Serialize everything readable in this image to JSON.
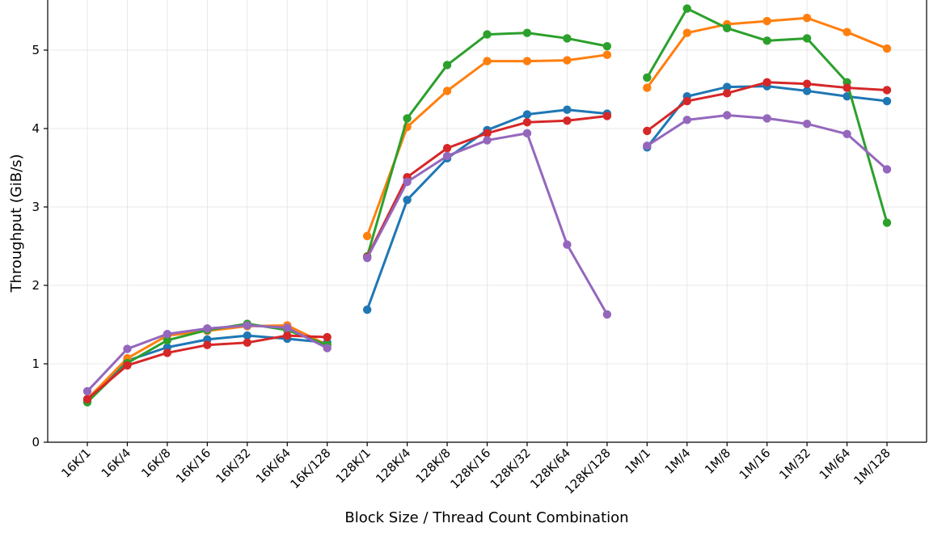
{
  "chart_data": {
    "type": "line",
    "title": "",
    "xlabel": "Block Size / Thread Count Combination",
    "ylabel": "Throughput (GiB/s)",
    "ylim": [
      0,
      5.6
    ],
    "yticks": [
      0,
      1,
      2,
      3,
      4,
      5
    ],
    "grid": true,
    "legend": "none",
    "categories": [
      "16K/1",
      "16K/4",
      "16K/8",
      "16K/16",
      "16K/32",
      "16K/64",
      "16K/128",
      "128K/1",
      "128K/4",
      "128K/8",
      "128K/16",
      "128K/32",
      "128K/64",
      "128K/128",
      "1M/1",
      "1M/4",
      "1M/8",
      "1M/16",
      "1M/32",
      "1M/64",
      "1M/128"
    ],
    "groups": [
      [
        0,
        6
      ],
      [
        7,
        13
      ],
      [
        14,
        20
      ]
    ],
    "series": [
      {
        "color": "#1f77b4",
        "values": [
          0.52,
          1.04,
          1.21,
          1.31,
          1.36,
          1.32,
          1.27,
          1.69,
          3.09,
          3.62,
          3.98,
          4.18,
          4.24,
          4.19,
          3.76,
          4.41,
          4.53,
          4.54,
          4.48,
          4.41,
          4.35
        ]
      },
      {
        "color": "#ff7f0e",
        "values": [
          0.55,
          1.07,
          1.36,
          1.42,
          1.48,
          1.49,
          1.24,
          2.63,
          4.02,
          4.48,
          4.86,
          4.86,
          4.87,
          4.94,
          4.52,
          5.22,
          5.33,
          5.37,
          5.41,
          5.23,
          5.02
        ]
      },
      {
        "color": "#2ca02c",
        "values": [
          0.51,
          1.01,
          1.3,
          1.43,
          1.51,
          1.43,
          1.24,
          2.37,
          4.13,
          4.81,
          5.2,
          5.22,
          5.15,
          5.05,
          4.65,
          5.53,
          5.28,
          5.12,
          5.15,
          4.59,
          2.8
        ]
      },
      {
        "color": "#d62728",
        "values": [
          0.55,
          0.98,
          1.14,
          1.24,
          1.27,
          1.36,
          1.34,
          2.36,
          3.38,
          3.75,
          3.94,
          4.08,
          4.1,
          4.16,
          3.97,
          4.35,
          4.45,
          4.59,
          4.57,
          4.52,
          4.49
        ]
      },
      {
        "color": "#9467bd",
        "values": [
          0.65,
          1.19,
          1.38,
          1.45,
          1.49,
          1.46,
          1.2,
          2.35,
          3.32,
          3.65,
          3.85,
          3.94,
          2.52,
          1.63,
          3.78,
          4.11,
          4.17,
          4.13,
          4.06,
          3.93,
          3.48
        ]
      }
    ]
  }
}
